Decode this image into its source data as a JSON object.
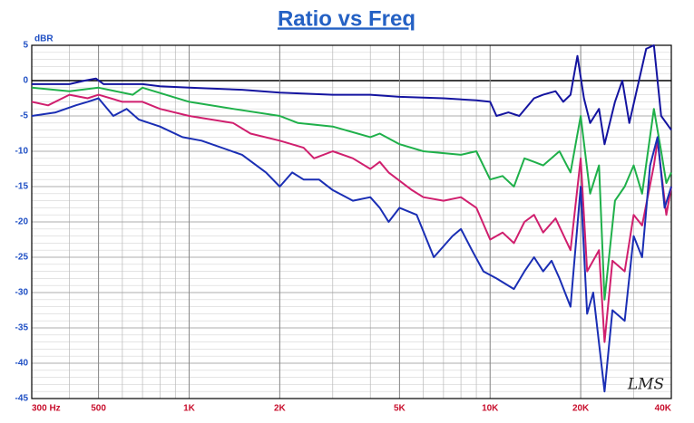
{
  "chart_data": {
    "type": "line",
    "title": "Ratio vs Freq",
    "y_label": "dBR",
    "annotation": "LMS",
    "xlog": true,
    "grid": true,
    "xlim": [
      300,
      40000
    ],
    "ylim": [
      -45,
      5
    ],
    "xticks": [
      {
        "value": 300,
        "label": "300  Hz"
      },
      {
        "value": 500,
        "label": "500"
      },
      {
        "value": 1000,
        "label": "1K"
      },
      {
        "value": 2000,
        "label": "2K"
      },
      {
        "value": 5000,
        "label": "5K"
      },
      {
        "value": 10000,
        "label": "10K"
      },
      {
        "value": 20000,
        "label": "20K"
      },
      {
        "value": 40000,
        "label": "40K"
      }
    ],
    "yticks": [
      5,
      0,
      -5,
      -10,
      -15,
      -20,
      -25,
      -30,
      -35,
      -40,
      -45
    ],
    "series": [
      {
        "color": "#1414a0",
        "x": [
          300,
          350,
          400,
          450,
          490,
          520,
          600,
          700,
          800,
          1000,
          1500,
          2000,
          3000,
          4000,
          5000,
          7000,
          9000,
          10000,
          10500,
          11500,
          12500,
          14000,
          15000,
          16500,
          17500,
          18500,
          19500,
          20500,
          21500,
          23000,
          24000,
          26000,
          27500,
          29000,
          33000,
          35000,
          37000,
          40000
        ],
        "values": [
          -0.5,
          -0.5,
          -0.5,
          0,
          0.3,
          -0.5,
          -0.5,
          -0.5,
          -0.8,
          -1,
          -1.3,
          -1.7,
          -2,
          -2,
          -2.3,
          -2.5,
          -2.8,
          -3,
          -5,
          -4.5,
          -5,
          -2.5,
          -2,
          -1.5,
          -3,
          -2,
          3.5,
          -2.5,
          -6,
          -4,
          -9,
          -3,
          0,
          -6,
          4.5,
          5,
          -5,
          -7
        ]
      },
      {
        "color": "#1fb04a",
        "x": [
          300,
          400,
          500,
          650,
          700,
          1000,
          1400,
          2000,
          2300,
          3000,
          4000,
          4300,
          5000,
          6000,
          8000,
          9000,
          10000,
          11000,
          12000,
          13000,
          14000,
          15000,
          17000,
          18500,
          20000,
          21500,
          23000,
          24000,
          26000,
          28000,
          30000,
          32000,
          35000,
          37000,
          38500,
          40000
        ],
        "values": [
          -1,
          -1.5,
          -1,
          -2,
          -1,
          -3,
          -4,
          -5,
          -6,
          -6.5,
          -8,
          -7.5,
          -9,
          -10,
          -10.5,
          -10,
          -14,
          -13.5,
          -15,
          -11,
          -11.5,
          -12,
          -10,
          -13,
          -5,
          -16,
          -12,
          -31,
          -17,
          -15,
          -12,
          -16,
          -4,
          -10,
          -14.5,
          -13
        ]
      },
      {
        "color": "#d01f6e",
        "x": [
          300,
          340,
          400,
          460,
          500,
          600,
          700,
          800,
          1000,
          1400,
          1600,
          2000,
          2400,
          2600,
          3000,
          3500,
          4000,
          4300,
          4600,
          5500,
          6000,
          7000,
          8000,
          9000,
          10000,
          11000,
          12000,
          13000,
          14000,
          15000,
          16500,
          18500,
          20000,
          21000,
          23000,
          24000,
          25500,
          28000,
          30000,
          32000,
          35000,
          36000,
          38500,
          40000
        ],
        "values": [
          -3,
          -3.5,
          -2,
          -2.5,
          -2,
          -3,
          -3,
          -4,
          -5,
          -6,
          -7.5,
          -8.5,
          -9.5,
          -11,
          -10,
          -11,
          -12.5,
          -11.5,
          -13,
          -15.5,
          -16.5,
          -17,
          -16.5,
          -18,
          -22.5,
          -21.5,
          -23,
          -20,
          -19,
          -21.5,
          -19.5,
          -24,
          -11,
          -27,
          -24,
          -37,
          -25.5,
          -27,
          -19,
          -20.5,
          -12,
          -8.5,
          -19,
          -15
        ]
      },
      {
        "color": "#1a2eb4",
        "x": [
          300,
          360,
          420,
          460,
          500,
          560,
          620,
          680,
          800,
          950,
          1100,
          1500,
          1800,
          2000,
          2200,
          2400,
          2700,
          3000,
          3500,
          4000,
          4300,
          4600,
          5000,
          5700,
          6500,
          7500,
          8000,
          8700,
          9500,
          10500,
          12000,
          13000,
          14000,
          15000,
          16000,
          17000,
          18500,
          20000,
          21000,
          22000,
          24000,
          25500,
          28000,
          30000,
          32000,
          34000,
          36000,
          38000,
          40000
        ],
        "values": [
          -5,
          -4.5,
          -3.5,
          -3,
          -2.5,
          -5,
          -4,
          -5.5,
          -6.5,
          -8,
          -8.5,
          -10.5,
          -13,
          -15,
          -13,
          -14,
          -14,
          -15.5,
          -17,
          -16.5,
          -18,
          -20,
          -18,
          -19,
          -25,
          -22,
          -21,
          -24,
          -27,
          -28,
          -29.5,
          -27,
          -25,
          -27,
          -25.5,
          -28,
          -32,
          -15,
          -33,
          -30,
          -44,
          -32.5,
          -34,
          -22,
          -25,
          -12,
          -8,
          -18,
          -15
        ]
      }
    ]
  }
}
